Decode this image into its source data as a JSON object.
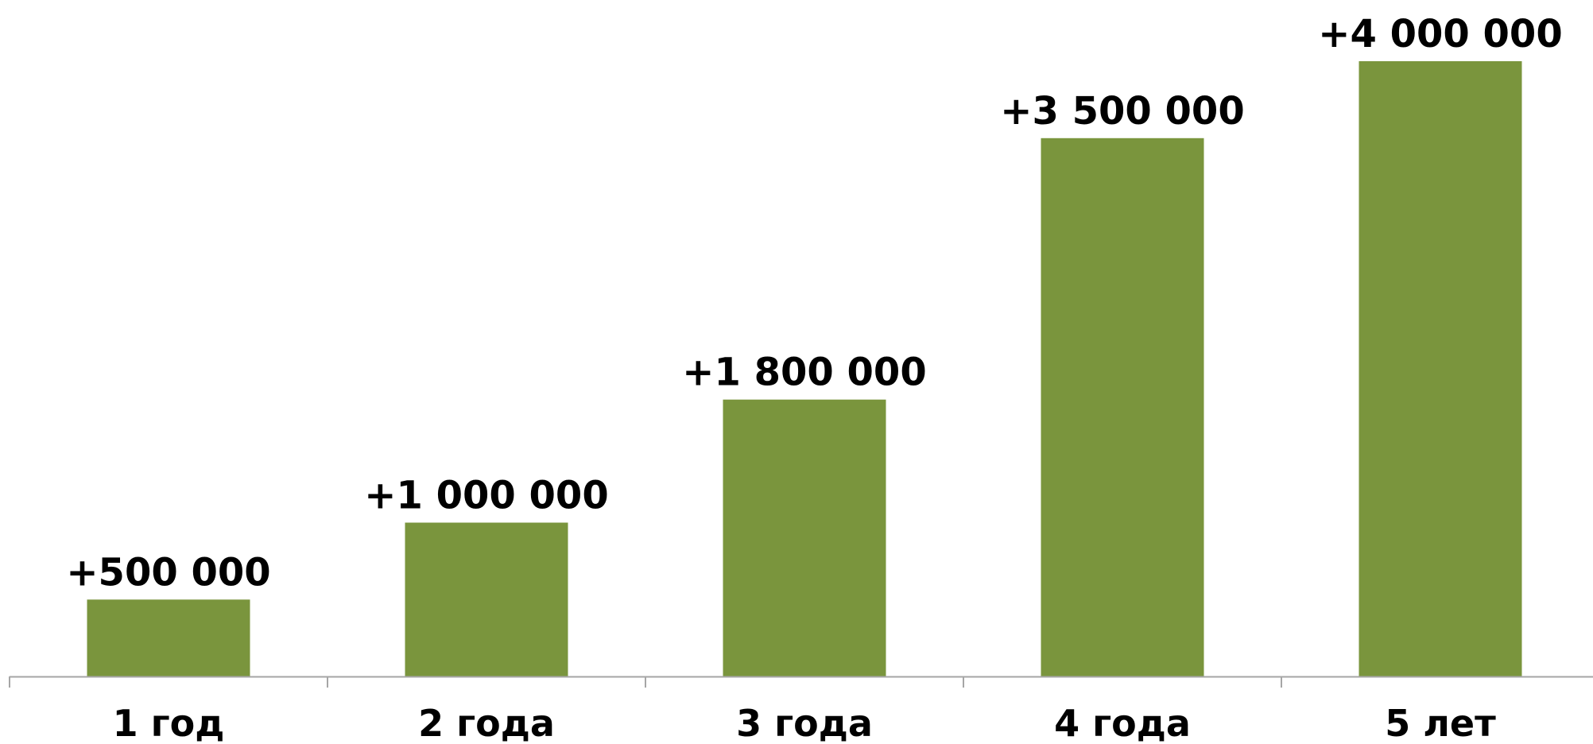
{
  "chart_data": {
    "type": "bar",
    "categories": [
      "1 год",
      "2 года",
      "3 года",
      "4 года",
      "5 лет"
    ],
    "values": [
      500000,
      1000000,
      1800000,
      3500000,
      4000000
    ],
    "data_labels": [
      "+500 000",
      "+1 000 000",
      "+1 800 000",
      "+3 500 000",
      "+4 000 000"
    ],
    "title": "",
    "xlabel": "",
    "ylabel": "",
    "ylim": [
      0,
      4400000
    ],
    "grid": false,
    "legend": "none",
    "y_axis_visible": false,
    "colors": {
      "bar": "#7a953d",
      "axis": "#a6a6a6"
    }
  }
}
